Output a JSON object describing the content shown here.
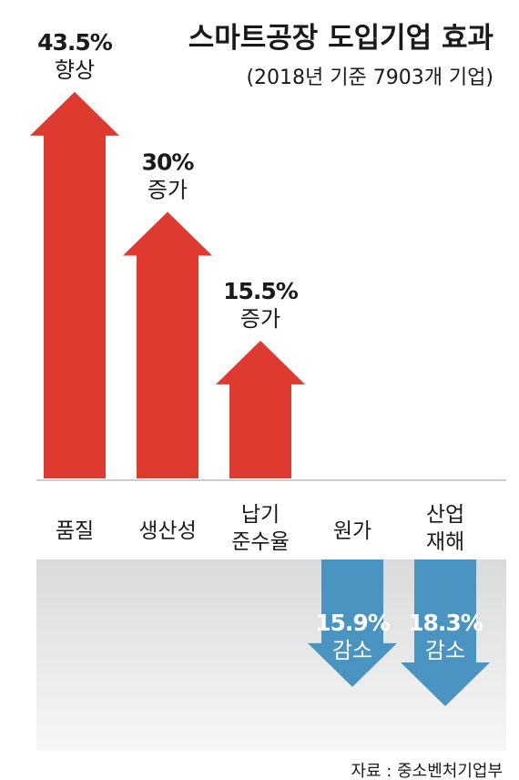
{
  "chart_data": {
    "type": "bar",
    "title": "스마트공장 도입기업 효과",
    "subtitle": "(2018년 기준 7903개 기업)",
    "source": "자료 : 중소벤처기업부",
    "unit": "%",
    "series_colors": {
      "increase": "#de3a30",
      "decrease": "#4a94c2"
    },
    "bars": [
      {
        "category": [
          "품질"
        ],
        "value": 43.5,
        "value_label": "43.5%",
        "change_label": "향상",
        "direction": "up"
      },
      {
        "category": [
          "생산성"
        ],
        "value": 30,
        "value_label": "30%",
        "change_label": "증가",
        "direction": "up"
      },
      {
        "category": [
          "납기",
          "준수율"
        ],
        "value": 15.5,
        "value_label": "15.5%",
        "change_label": "증가",
        "direction": "up"
      },
      {
        "category": [
          "원가"
        ],
        "value": 15.9,
        "value_label": "15.9%",
        "change_label": "감소",
        "direction": "down"
      },
      {
        "category": [
          "산업",
          "재해"
        ],
        "value": 18.3,
        "value_label": "18.3%",
        "change_label": "감소",
        "direction": "down"
      }
    ]
  }
}
